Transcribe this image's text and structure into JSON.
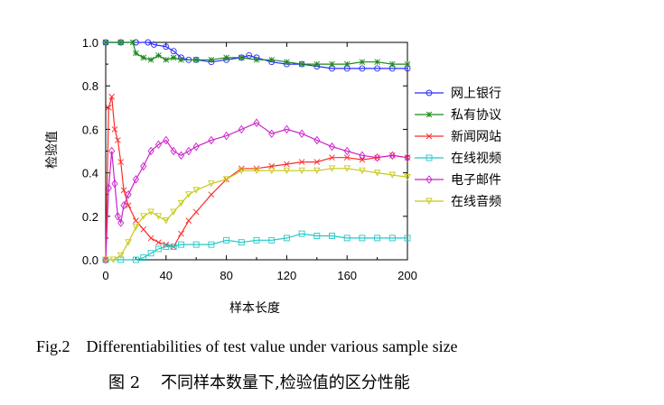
{
  "figure": {
    "caption_en": "Fig.2    Differentiabilities of test value under various sample size",
    "caption_zh": "图 2    不同样本数量下,检验值的区分性能"
  },
  "chart_data": {
    "type": "line",
    "xlabel": "样本长度",
    "ylabel": "检验值",
    "xlim": [
      0,
      200
    ],
    "ylim": [
      0.0,
      1.0
    ],
    "xticks": [
      "0",
      "40",
      "80",
      "120",
      "160",
      "200"
    ],
    "yticks": [
      "0.0",
      "0.2",
      "0.4",
      "0.6",
      "0.8",
      "1.0"
    ],
    "legend_position": "right",
    "grid": false,
    "series": [
      {
        "name": "网上银行",
        "color": "#2a2aff",
        "marker": "circle",
        "x": [
          0,
          10,
          20,
          28,
          32,
          40,
          45,
          50,
          55,
          60,
          70,
          80,
          90,
          95,
          100,
          110,
          120,
          130,
          140,
          150,
          160,
          170,
          180,
          190,
          200
        ],
        "y": [
          1.0,
          1.0,
          1.0,
          1.0,
          0.99,
          0.98,
          0.96,
          0.93,
          0.92,
          0.92,
          0.91,
          0.92,
          0.93,
          0.94,
          0.93,
          0.91,
          0.9,
          0.9,
          0.89,
          0.88,
          0.88,
          0.88,
          0.88,
          0.88,
          0.88
        ]
      },
      {
        "name": "私有协议",
        "color": "#1a8a1a",
        "marker": "asterisk",
        "x": [
          0,
          10,
          18,
          20,
          25,
          30,
          35,
          40,
          45,
          50,
          60,
          70,
          80,
          90,
          100,
          110,
          120,
          130,
          140,
          150,
          160,
          170,
          180,
          190,
          200
        ],
        "y": [
          1.0,
          1.0,
          1.0,
          0.95,
          0.93,
          0.92,
          0.94,
          0.92,
          0.93,
          0.92,
          0.92,
          0.92,
          0.93,
          0.93,
          0.92,
          0.92,
          0.91,
          0.9,
          0.9,
          0.9,
          0.9,
          0.91,
          0.91,
          0.9,
          0.9
        ]
      },
      {
        "name": "新闻网站",
        "color": "#ff2a2a",
        "marker": "x",
        "x": [
          0,
          2,
          4,
          6,
          8,
          10,
          12,
          15,
          20,
          25,
          30,
          35,
          40,
          45,
          50,
          55,
          60,
          70,
          80,
          90,
          100,
          110,
          120,
          130,
          140,
          150,
          160,
          170,
          180,
          190,
          200
        ],
        "y": [
          0.0,
          0.7,
          0.75,
          0.6,
          0.55,
          0.45,
          0.32,
          0.25,
          0.18,
          0.14,
          0.1,
          0.08,
          0.07,
          0.06,
          0.12,
          0.18,
          0.22,
          0.3,
          0.37,
          0.42,
          0.42,
          0.43,
          0.44,
          0.45,
          0.45,
          0.47,
          0.47,
          0.46,
          0.47,
          0.48,
          0.47
        ]
      },
      {
        "name": "在线视频",
        "color": "#22c8c8",
        "marker": "square",
        "x": [
          0,
          10,
          20,
          25,
          30,
          35,
          40,
          45,
          50,
          60,
          70,
          80,
          90,
          100,
          110,
          120,
          130,
          140,
          150,
          160,
          170,
          180,
          190,
          200
        ],
        "y": [
          0.0,
          0.0,
          0.0,
          0.01,
          0.03,
          0.05,
          0.06,
          0.06,
          0.07,
          0.07,
          0.07,
          0.09,
          0.08,
          0.09,
          0.09,
          0.1,
          0.12,
          0.11,
          0.11,
          0.1,
          0.1,
          0.1,
          0.1,
          0.1
        ]
      },
      {
        "name": "电子邮件",
        "color": "#cc22cc",
        "marker": "diamond",
        "x": [
          0,
          2,
          4,
          6,
          8,
          10,
          12,
          15,
          20,
          25,
          30,
          35,
          40,
          45,
          50,
          55,
          60,
          70,
          80,
          90,
          100,
          110,
          120,
          130,
          140,
          150,
          160,
          170,
          180,
          190,
          200
        ],
        "y": [
          0.0,
          0.33,
          0.5,
          0.35,
          0.2,
          0.17,
          0.25,
          0.3,
          0.37,
          0.43,
          0.5,
          0.53,
          0.55,
          0.5,
          0.48,
          0.5,
          0.52,
          0.55,
          0.57,
          0.6,
          0.63,
          0.58,
          0.6,
          0.58,
          0.55,
          0.52,
          0.5,
          0.48,
          0.47,
          0.48,
          0.47
        ]
      },
      {
        "name": "在线音频",
        "color": "#c8c81a",
        "marker": "triangle-down",
        "x": [
          0,
          5,
          10,
          15,
          20,
          25,
          30,
          35,
          40,
          45,
          50,
          55,
          60,
          70,
          80,
          90,
          100,
          110,
          120,
          130,
          140,
          150,
          160,
          170,
          180,
          190,
          200
        ],
        "y": [
          0.0,
          0.0,
          0.02,
          0.08,
          0.15,
          0.2,
          0.22,
          0.2,
          0.18,
          0.22,
          0.26,
          0.3,
          0.32,
          0.35,
          0.37,
          0.41,
          0.41,
          0.41,
          0.41,
          0.41,
          0.41,
          0.42,
          0.42,
          0.41,
          0.4,
          0.39,
          0.38
        ]
      }
    ]
  }
}
